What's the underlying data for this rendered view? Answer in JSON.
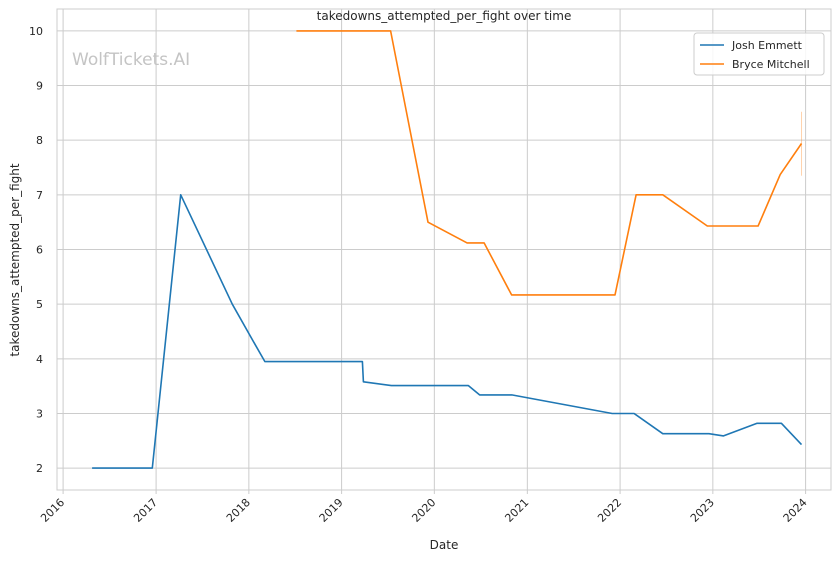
{
  "watermark": "WolfTickets.AI",
  "chart_data": {
    "type": "line",
    "title": "takedowns_attempted_per_fight over time",
    "xlabel": "Date",
    "ylabel": "takedowns_attempted_per_fight",
    "xlim": [
      "2015-12-08",
      "2024-04-10"
    ],
    "ylim": [
      1.6,
      10.4
    ],
    "x_ticks": [
      "2016",
      "2017",
      "2018",
      "2019",
      "2020",
      "2021",
      "2022",
      "2023",
      "2024"
    ],
    "y_ticks": [
      2,
      3,
      4,
      5,
      6,
      7,
      8,
      9,
      10
    ],
    "grid": true,
    "legend_position": "top-right",
    "series": [
      {
        "name": "Josh Emmett",
        "color": "#1f77b4",
        "points": [
          [
            "2016-04-24",
            2.0
          ],
          [
            "2016-12-17",
            2.0
          ],
          [
            "2017-04-08",
            7.0
          ],
          [
            "2017-10-28",
            5.0
          ],
          [
            "2018-01-27",
            4.25
          ],
          [
            "2018-03-05",
            3.95
          ],
          [
            "2019-03-24",
            3.95
          ],
          [
            "2019-03-28",
            3.58
          ],
          [
            "2019-07-16",
            3.51
          ],
          [
            "2020-05-14",
            3.51
          ],
          [
            "2020-06-27",
            3.34
          ],
          [
            "2020-11-01",
            3.34
          ],
          [
            "2021-12-01",
            3.0
          ],
          [
            "2022-02-25",
            3.0
          ],
          [
            "2022-06-18",
            2.63
          ],
          [
            "2022-12-17",
            2.63
          ],
          [
            "2023-02-12",
            2.59
          ],
          [
            "2023-06-24",
            2.82
          ],
          [
            "2023-09-28",
            2.82
          ],
          [
            "2023-12-16",
            2.43
          ]
        ]
      },
      {
        "name": "Bryce Mitchell",
        "color": "#ff7f0e",
        "points": [
          [
            "2018-07-07",
            10.0
          ],
          [
            "2019-07-13",
            10.0
          ],
          [
            "2019-12-07",
            6.5
          ],
          [
            "2020-05-09",
            6.12
          ],
          [
            "2020-07-15",
            6.12
          ],
          [
            "2020-10-31",
            5.17
          ],
          [
            "2021-12-12",
            5.17
          ],
          [
            "2022-03-05",
            7.0
          ],
          [
            "2022-06-18",
            7.0
          ],
          [
            "2022-12-10",
            6.43
          ],
          [
            "2023-06-28",
            6.43
          ],
          [
            "2023-09-23",
            7.37
          ],
          [
            "2023-12-16",
            7.94
          ]
        ],
        "error_bar": {
          "x": "2023-12-16",
          "low": 7.35,
          "high": 8.52
        }
      }
    ]
  }
}
